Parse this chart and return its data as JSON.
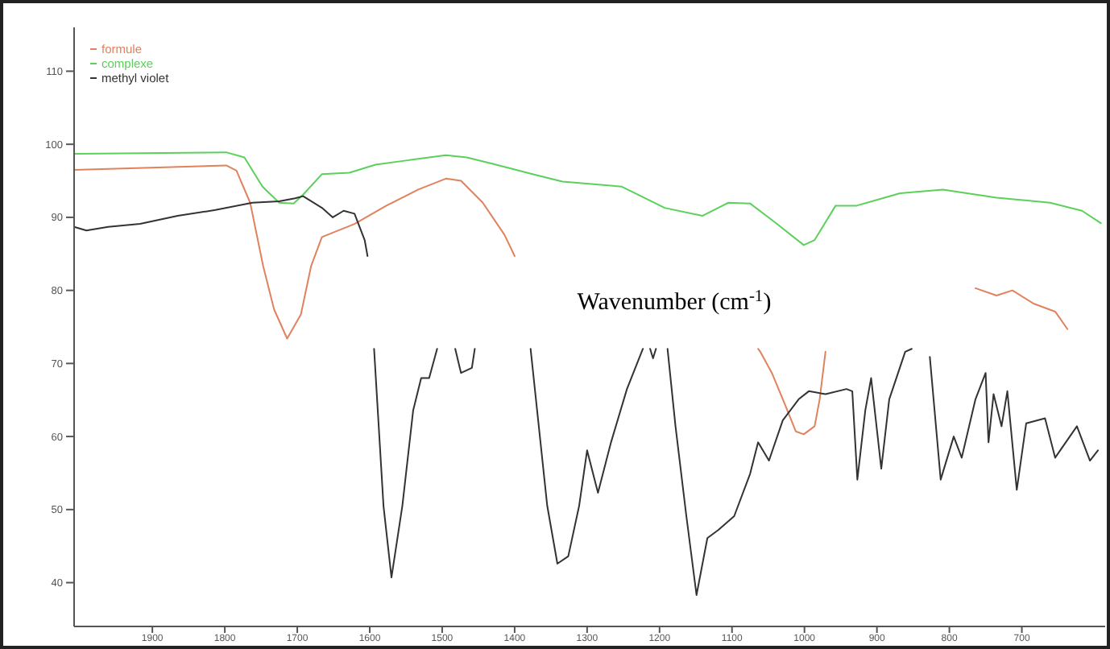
{
  "chart_data": {
    "type": "line",
    "xlabel": "Wavenumber (cm$^{-1}$)",
    "xlim": [
      2008,
      585
    ],
    "xticks": [
      1900,
      1800,
      1700,
      1600,
      1500,
      1400,
      1300,
      1200,
      1100,
      1000,
      900,
      800,
      700
    ],
    "ylim": [
      34,
      116
    ],
    "yticks": [
      40,
      50,
      60,
      70,
      80,
      90,
      100,
      110
    ],
    "grid": false,
    "legend": "top left",
    "marker": "none",
    "line_style": "solid",
    "series": [
      {
        "name": "formule",
        "color": "#e0825e",
        "x": [
          2008,
          1798,
          1784,
          1765,
          1747,
          1732,
          1714,
          1695,
          1681,
          1666,
          1621,
          1577,
          1533,
          1495,
          1474,
          1444,
          1414,
          1400,
          1390,
          1064,
          1061,
          1045,
          1027,
          1012,
          1001,
          986,
          979,
          971,
          880,
          764,
          735,
          713,
          684,
          654,
          637
        ],
        "values": [
          96.5,
          97.1,
          96.4,
          92,
          83.3,
          77.4,
          73.4,
          76.7,
          83.3,
          87.3,
          89.1,
          91.6,
          93.8,
          95.3,
          95.0,
          92.0,
          87.6,
          84.7,
          null,
          72,
          71.6,
          68.7,
          64.4,
          60.7,
          60.3,
          61.4,
          65.1,
          71.6,
          null,
          80.3,
          79.3,
          80.0,
          78.2,
          77.1,
          74.7
        ]
      },
      {
        "name": "complexe",
        "color": "#5bd05b",
        "x": [
          2008,
          1798,
          1773,
          1748,
          1725,
          1705,
          1692,
          1666,
          1628,
          1592,
          1548,
          1495,
          1466,
          1429,
          1371,
          1334,
          1252,
          1193,
          1141,
          1105,
          1075,
          1038,
          1001,
          986,
          957,
          928,
          868,
          809,
          735,
          661,
          617,
          591
        ],
        "values": [
          98.7,
          98.9,
          98.2,
          94.2,
          92.0,
          91.9,
          93.1,
          95.9,
          96.1,
          97.2,
          97.8,
          98.5,
          98.2,
          97.3,
          95.8,
          94.9,
          94.2,
          91.3,
          90.2,
          92.0,
          91.9,
          89.1,
          86.2,
          86.9,
          91.6,
          91.6,
          93.3,
          93.8,
          92.7,
          92.0,
          90.9,
          89.2
        ]
      },
      {
        "name": "methyl violet",
        "color": "#333333",
        "x": [
          2008,
          1991,
          1961,
          1917,
          1865,
          1813,
          1762,
          1725,
          1703,
          1692,
          1666,
          1651,
          1636,
          1621,
          1607,
          1603,
          1598,
          1594,
          1581,
          1570,
          1555,
          1540,
          1529,
          1518,
          1507,
          1495,
          1482,
          1474,
          1459,
          1455,
          1420,
          1378,
          1355,
          1341,
          1326,
          1311,
          1300,
          1285,
          1267,
          1245,
          1223,
          1217,
          1213,
          1209,
          1205,
          1197,
          1189,
          1178,
          1163,
          1149,
          1134,
          1119,
          1097,
          1075,
          1064,
          1049,
          1030,
          1008,
          994,
          971,
          942,
          934,
          927,
          916,
          908,
          894,
          883,
          861,
          852,
          840,
          827,
          812,
          794,
          783,
          764,
          750,
          746,
          739,
          728,
          720,
          707,
          694,
          668,
          654,
          624,
          606,
          595
        ],
        "values": [
          88.7,
          88.2,
          88.7,
          89.1,
          90.2,
          91.0,
          92.0,
          92.2,
          92.6,
          92.9,
          91.3,
          90.0,
          90.9,
          90.5,
          86.9,
          84.7,
          null,
          72.0,
          50.5,
          40.7,
          50.5,
          63.6,
          68.0,
          68.0,
          72.0,
          null,
          72.0,
          68.7,
          69.4,
          72.0,
          null,
          72.0,
          50.5,
          42.6,
          43.6,
          50.5,
          58.1,
          52.3,
          59.2,
          66.5,
          72.0,
          null,
          72.0,
          70.7,
          72.0,
          null,
          72.0,
          61.4,
          49.1,
          38.3,
          46.1,
          47.2,
          49.1,
          54.9,
          59.2,
          56.7,
          62.2,
          65.1,
          66.2,
          65.8,
          66.5,
          66.2,
          54.1,
          63.6,
          68.0,
          55.6,
          65.1,
          71.6,
          72.0,
          null,
          70.9,
          54.1,
          60.0,
          57.1,
          65.1,
          68.7,
          59.2,
          65.8,
          61.4,
          66.2,
          52.7,
          61.8,
          62.5,
          57.1,
          61.4,
          56.7,
          58.1
        ]
      }
    ]
  }
}
